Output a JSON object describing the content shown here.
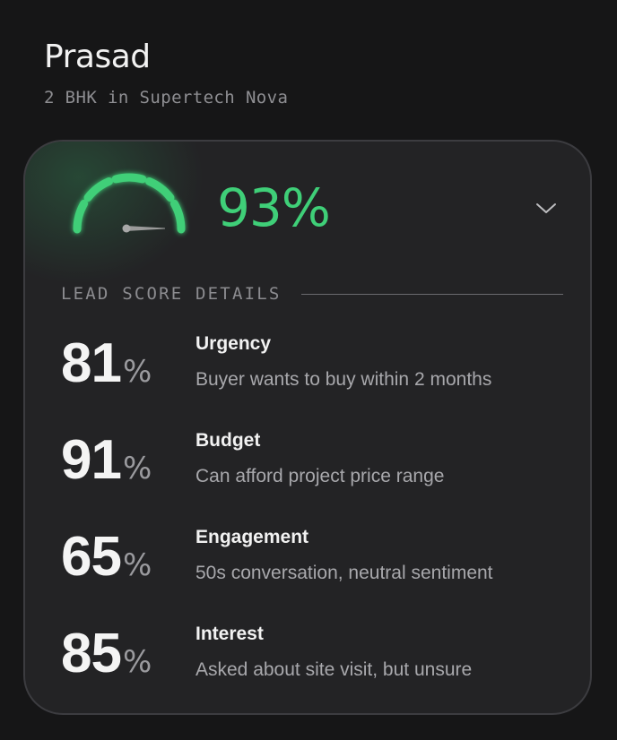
{
  "lead": {
    "name": "Prasad",
    "property": "2 BHK in Supertech Nova"
  },
  "score": {
    "total": "93%",
    "gauge_fraction": 0.93,
    "accent_color": "#3fcf78",
    "expand_icon": "chevron-down-icon"
  },
  "details": {
    "heading": "LEAD SCORE DETAILS",
    "factors": [
      {
        "value": "81",
        "unit": "%",
        "title": "Urgency",
        "description": "Buyer wants to buy within 2 months"
      },
      {
        "value": "91",
        "unit": "%",
        "title": "Budget",
        "description": "Can afford project price range"
      },
      {
        "value": "65",
        "unit": "%",
        "title": "Engagement",
        "description": "50s conversation, neutral sentiment"
      },
      {
        "value": "85",
        "unit": "%",
        "title": "Interest",
        "description": "Asked about site visit, but unsure"
      }
    ]
  }
}
